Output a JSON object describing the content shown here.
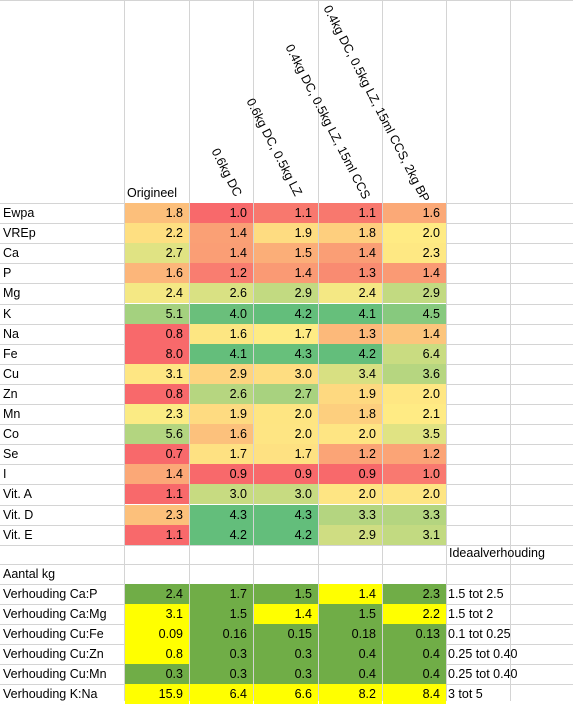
{
  "columns": {
    "original": "Origineel",
    "scenarios": [
      "0.6kg DC",
      "0.6kg DC, 0.5kg LZ",
      "0.4kg DC, 0.5kg LZ, 15ml CCS",
      "0.4kg DC, 0.5kg LZ, 15ml CCS, 2kg BP"
    ]
  },
  "rows": [
    {
      "label": "Ewpa",
      "values": [
        "1.8",
        "1.0",
        "1.1",
        "1.1",
        "1.6"
      ],
      "colors": [
        "#fcbf7b",
        "#f8696b",
        "#f8786e",
        "#f8786e",
        "#fba977"
      ]
    },
    {
      "label": "VREp",
      "values": [
        "2.2",
        "1.4",
        "1.9",
        "1.8",
        "2.0"
      ],
      "colors": [
        "#fedf81",
        "#faa075",
        "#fedc81",
        "#fecf7e",
        "#ffeb84"
      ]
    },
    {
      "label": "Ca",
      "values": [
        "2.7",
        "1.4",
        "1.5",
        "1.4",
        "2.3"
      ],
      "colors": [
        "#e0e383",
        "#fa9e75",
        "#fbae78",
        "#fa9e75",
        "#fee883"
      ]
    },
    {
      "label": "P",
      "values": [
        "1.6",
        "1.2",
        "1.4",
        "1.3",
        "1.4"
      ],
      "colors": [
        "#fcb67a",
        "#f97d70",
        "#fa9a74",
        "#f98b71",
        "#fa9a74"
      ]
    },
    {
      "label": "Mg",
      "values": [
        "2.4",
        "2.6",
        "2.9",
        "2.4",
        "2.9"
      ],
      "colors": [
        "#f4e884",
        "#d9e183",
        "#c2da81",
        "#f4e884",
        "#c2da81"
      ]
    },
    {
      "label": "K",
      "values": [
        "5.1",
        "4.0",
        "4.2",
        "4.1",
        "4.5"
      ],
      "colors": [
        "#a4d17f",
        "#6abf7b",
        "#63be7b",
        "#66bf7b",
        "#87c97e"
      ]
    },
    {
      "label": "Na",
      "values": [
        "0.8",
        "1.6",
        "1.7",
        "1.3",
        "1.4"
      ],
      "colors": [
        "#f8696b",
        "#fde682",
        "#feeb84",
        "#fcb97a",
        "#fcc57c"
      ]
    },
    {
      "label": "Fe",
      "values": [
        "8.0",
        "4.1",
        "4.3",
        "4.2",
        "6.4"
      ],
      "colors": [
        "#f8696b",
        "#64be7b",
        "#67c07b",
        "#63be7b",
        "#c9dc81"
      ]
    },
    {
      "label": "Cu",
      "values": [
        "3.1",
        "2.9",
        "3.0",
        "3.4",
        "3.6"
      ],
      "colors": [
        "#fee683",
        "#fed47f",
        "#fedd81",
        "#d8e082",
        "#b6d680"
      ]
    },
    {
      "label": "Zn",
      "values": [
        "0.8",
        "2.6",
        "2.7",
        "1.9",
        "2.0"
      ],
      "colors": [
        "#f8696b",
        "#b6d680",
        "#a8d27f",
        "#fed980",
        "#ffe783"
      ]
    },
    {
      "label": "Mn",
      "values": [
        "2.3",
        "1.9",
        "2.0",
        "1.8",
        "2.1"
      ],
      "colors": [
        "#fbeb84",
        "#fedb81",
        "#fee582",
        "#fdcf7e",
        "#ffeb84"
      ]
    },
    {
      "label": "Co",
      "values": [
        "5.6",
        "1.6",
        "2.0",
        "2.0",
        "3.5"
      ],
      "colors": [
        "#b3d580",
        "#fcc17c",
        "#fee583",
        "#fee583",
        "#e0e383"
      ]
    },
    {
      "label": "Se",
      "values": [
        "0.7",
        "1.7",
        "1.7",
        "1.2",
        "1.2"
      ],
      "colors": [
        "#f8696b",
        "#fee182",
        "#fee182",
        "#fba476",
        "#fba476"
      ]
    },
    {
      "label": "I",
      "values": [
        "1.4",
        "0.9",
        "0.9",
        "0.9",
        "1.0"
      ],
      "colors": [
        "#fba877",
        "#f8696b",
        "#f8696b",
        "#f8696b",
        "#f97970"
      ]
    },
    {
      "label": "Vit. A",
      "values": [
        "1.1",
        "3.0",
        "3.0",
        "2.0",
        "2.0"
      ],
      "colors": [
        "#f8696b",
        "#c7db81",
        "#c7db81",
        "#fee583",
        "#fee583"
      ]
    },
    {
      "label": "Vit. D",
      "values": [
        "2.3",
        "4.3",
        "4.3",
        "3.3",
        "3.3"
      ],
      "colors": [
        "#fcc07b",
        "#63be7b",
        "#63be7b",
        "#b4d580",
        "#b4d580"
      ]
    },
    {
      "label": "Vit. E",
      "values": [
        "1.1",
        "4.2",
        "4.2",
        "2.9",
        "3.1"
      ],
      "colors": [
        "#f8696b",
        "#63be7b",
        "#63be7b",
        "#cfdd82",
        "#c2da81"
      ]
    }
  ],
  "ideal_header": "Ideaalverhouding",
  "aantal_label": "Aantal kg",
  "ratios": [
    {
      "label": "Verhouding Ca:P",
      "values": [
        "2.4",
        "1.7",
        "1.5",
        "1.4",
        "2.3"
      ],
      "colors": [
        "#70ad47",
        "#70ad47",
        "#70ad47",
        "#ffff00",
        "#70ad47"
      ],
      "ideal": "1.5 tot 2.5"
    },
    {
      "label": "Verhouding Ca:Mg",
      "values": [
        "3.1",
        "1.5",
        "1.4",
        "1.5",
        "2.2"
      ],
      "colors": [
        "#ffff00",
        "#70ad47",
        "#ffff00",
        "#70ad47",
        "#ffff00"
      ],
      "ideal": "1.5 tot 2"
    },
    {
      "label": "Verhouding Cu:Fe",
      "values": [
        "0.09",
        "0.16",
        "0.15",
        "0.18",
        "0.13"
      ],
      "colors": [
        "#ffff00",
        "#70ad47",
        "#70ad47",
        "#70ad47",
        "#70ad47"
      ],
      "ideal": "0.1 tot 0.25"
    },
    {
      "label": "Verhouding Cu:Zn",
      "values": [
        "0.8",
        "0.3",
        "0.3",
        "0.4",
        "0.4"
      ],
      "colors": [
        "#ffff00",
        "#70ad47",
        "#70ad47",
        "#70ad47",
        "#70ad47"
      ],
      "ideal": "0.25 tot 0.40"
    },
    {
      "label": "Verhouding Cu:Mn",
      "values": [
        "0.3",
        "0.3",
        "0.3",
        "0.4",
        "0.4"
      ],
      "colors": [
        "#70ad47",
        "#70ad47",
        "#70ad47",
        "#70ad47",
        "#70ad47"
      ],
      "ideal": "0.25 tot 0.40"
    },
    {
      "label": "Verhouding K:Na",
      "values": [
        "15.9",
        "6.4",
        "6.6",
        "8.2",
        "8.4"
      ],
      "colors": [
        "#ffff00",
        "#ffff00",
        "#ffff00",
        "#ffff00",
        "#ffff00"
      ],
      "ideal": "3 tot 5"
    }
  ]
}
